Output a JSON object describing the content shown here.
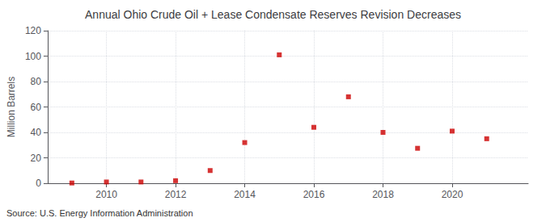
{
  "chart_data": {
    "type": "scatter",
    "title": "Annual Ohio Crude Oil + Lease Condensate Reserves Revision Decreases",
    "ylabel": "Million Barrels",
    "annotation": "Source: U.S. Energy Information Administration",
    "x": [
      2009,
      2010,
      2011,
      2012,
      2013,
      2014,
      2015,
      2016,
      2017,
      2018,
      2019,
      2020,
      2021
    ],
    "values": [
      0.2,
      1.0,
      1.0,
      2.0,
      10.0,
      32.0,
      101.0,
      44.0,
      68.0,
      40.0,
      27.5,
      41.0,
      35.0
    ],
    "color": "#cc0000",
    "marker": "square",
    "xlim": [
      2008.3,
      2022.2
    ],
    "xticks": [
      2010,
      2012,
      2014,
      2016,
      2018,
      2020
    ],
    "ylim": [
      0,
      120
    ],
    "yticks": [
      0,
      20,
      40,
      60,
      80,
      100,
      120
    ],
    "grid": true
  }
}
